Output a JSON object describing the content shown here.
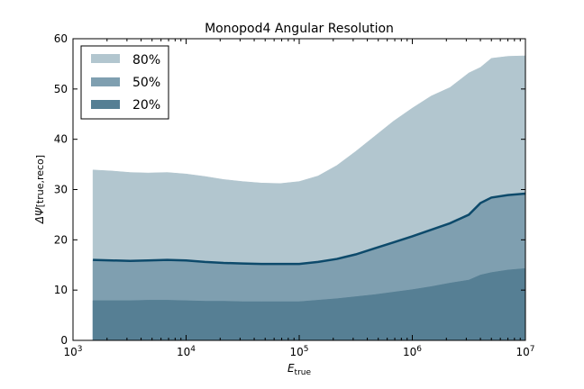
{
  "chart_data": {
    "type": "area",
    "title": "Monopod4 Angular Resolution",
    "xlabel": "E",
    "xlabel_sub": "true",
    "ylabel": "ΔΨ",
    "ylabel_sub": "[true,reco]",
    "xscale": "log",
    "xlim": [
      1000,
      10000000
    ],
    "ylim": [
      0,
      60
    ],
    "x_ticks": [
      {
        "value": 1000,
        "base": "10",
        "exp": "3"
      },
      {
        "value": 10000,
        "base": "10",
        "exp": "4"
      },
      {
        "value": 100000,
        "base": "10",
        "exp": "5"
      },
      {
        "value": 1000000,
        "base": "10",
        "exp": "6"
      },
      {
        "value": 10000000,
        "base": "10",
        "exp": "7"
      }
    ],
    "y_ticks": [
      "0",
      "10",
      "20",
      "30",
      "40",
      "50",
      "60"
    ],
    "grid": false,
    "legend_position": "top-left",
    "x": [
      1500,
      2200,
      3200,
      4600,
      6800,
      10000,
      14700,
      21500,
      31600,
      46400,
      68100,
      100000,
      146800,
      215400,
      316200,
      464200,
      681300,
      1000000,
      1468000,
      2154000,
      3162000,
      4000000,
      5000000,
      7000000,
      10000000
    ],
    "series": [
      {
        "name": "80%",
        "color": "#b2c6cf",
        "values": [
          33.9,
          33.7,
          33.4,
          33.3,
          33.4,
          33.1,
          32.6,
          32.0,
          31.6,
          31.3,
          31.2,
          31.6,
          32.7,
          34.8,
          37.6,
          40.6,
          43.6,
          46.2,
          48.6,
          50.3,
          53.2,
          54.3,
          56.1,
          56.5,
          56.6
        ]
      },
      {
        "name": "50%",
        "color": "#7f9fb0",
        "values": [
          16.0,
          15.9,
          15.8,
          15.9,
          16.0,
          15.9,
          15.6,
          15.4,
          15.3,
          15.2,
          15.2,
          15.2,
          15.6,
          16.2,
          17.1,
          18.3,
          19.5,
          20.7,
          22.0,
          23.3,
          25.0,
          27.3,
          28.4,
          28.9,
          29.2
        ]
      },
      {
        "name": "20%",
        "color": "#567f94",
        "values": [
          7.9,
          7.9,
          7.9,
          8.0,
          8.0,
          7.9,
          7.8,
          7.8,
          7.7,
          7.7,
          7.7,
          7.7,
          8.0,
          8.3,
          8.7,
          9.1,
          9.6,
          10.1,
          10.7,
          11.4,
          12.0,
          13.0,
          13.5,
          14.0,
          14.3
        ]
      }
    ],
    "median_line_color": "#0d4a6b"
  }
}
